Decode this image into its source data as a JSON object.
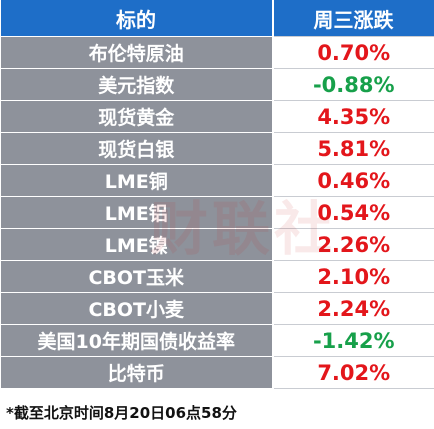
{
  "table": {
    "header": [
      "标的",
      "周三涨跌"
    ],
    "rows": [
      [
        "布伦特原油",
        "0.70%"
      ],
      [
        "美元指数",
        "-0.88%"
      ],
      [
        "现货黄金",
        "4.35%"
      ],
      [
        "现货白银",
        "5.81%"
      ],
      [
        "LME铜",
        "0.46%"
      ],
      [
        "LME铝",
        "0.54%"
      ],
      [
        "LME镍",
        "2.26%"
      ],
      [
        "CBOT玉米",
        "2.10%"
      ],
      [
        "CBOT小麦",
        "2.24%"
      ],
      [
        "美国10年期国债收益率",
        "-1.42%"
      ],
      [
        "比特币",
        "7.02%"
      ]
    ]
  },
  "watermark": "财联社",
  "footnote": "*截至北京时间8月20日06点58分"
}
